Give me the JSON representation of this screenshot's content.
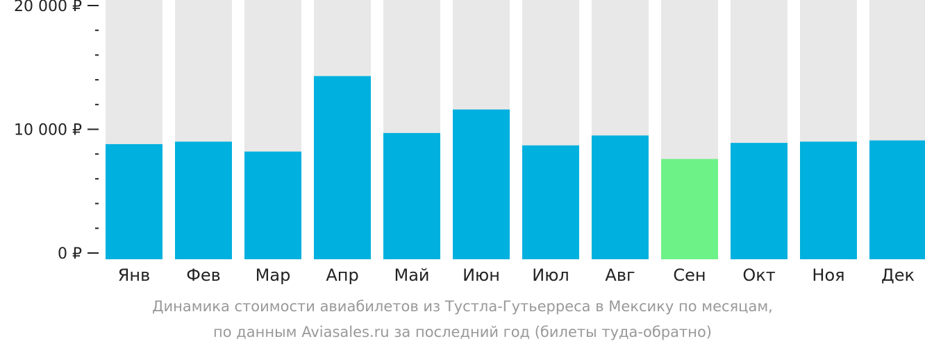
{
  "chart_data": {
    "type": "bar",
    "categories": [
      "Янв",
      "Фев",
      "Мар",
      "Апр",
      "Май",
      "Июн",
      "Июл",
      "Авг",
      "Сен",
      "Окт",
      "Ноя",
      "Дек"
    ],
    "values": [
      8800,
      9000,
      8200,
      14300,
      9700,
      11600,
      8700,
      9500,
      7600,
      8900,
      9000,
      9100
    ],
    "ylim": [
      0,
      20000
    ],
    "y_ticks": [
      {
        "value": 0,
        "label": "0 ₽"
      },
      {
        "value": 10000,
        "label": "10 000 ₽"
      },
      {
        "value": 20000,
        "label": "20 000 ₽"
      }
    ],
    "minor_tick_step": 2000,
    "highlight_category": "Сен",
    "colors": {
      "bar": "#00b0de",
      "highlight": "#6df287",
      "track": "#e8e8e8",
      "axis": "#222222"
    },
    "grid": false,
    "legend": "none"
  },
  "caption": {
    "line1": "Динамика стоимости авиабилетов из Тустла-Гутьерреса в Мексику по месяцам,",
    "line2": "по данным Aviasales.ru за последний год (билеты туда-обратно)"
  }
}
